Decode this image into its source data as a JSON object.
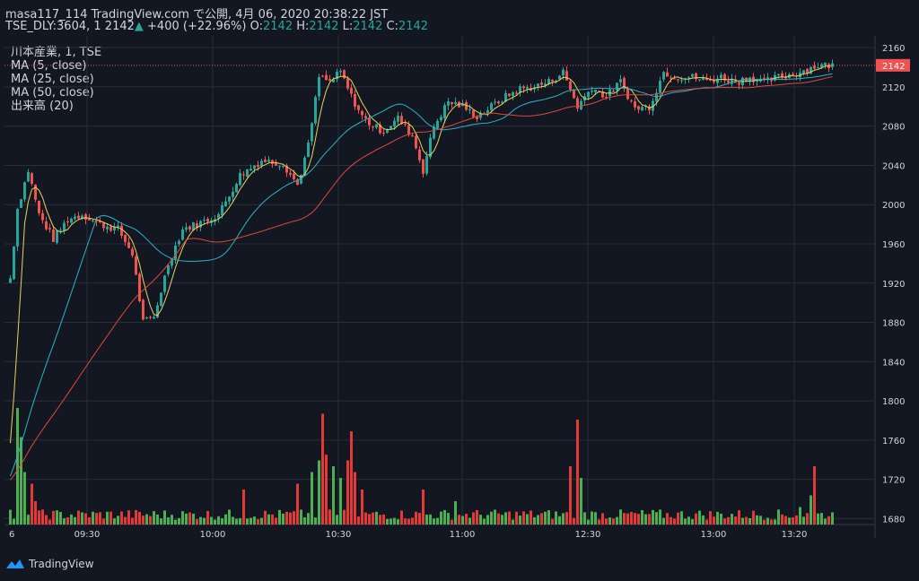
{
  "header": {
    "line1": "masa117_114 TradingView.com で公開, 4月 06, 2020 20:38:22 JST",
    "symbol": "TSE_DLY:3604, 1",
    "last": "2142",
    "change": "+400 (+22.96%)",
    "o_label": "O:",
    "o": "2142",
    "h_label": "H:",
    "h": "2142",
    "l_label": "L:",
    "l": "2142",
    "c_label": "C:",
    "c": "2142"
  },
  "studies": [
    "川本産業, 1, TSE",
    "MA (5, close)",
    "MA (25, close)",
    "MA (50, close)",
    "出来高 (20)"
  ],
  "logo_text": "TradingView",
  "colors": {
    "background": "#131722",
    "up": "#26a69a",
    "down": "#ef5350",
    "vol_up": "#4caf50",
    "vol_down": "#e53935",
    "ma5": "#e8d25a",
    "ma25": "#2ab5c9",
    "ma50": "#e0483a",
    "grid": "#2a2e39",
    "price_tag": "#ef5350"
  },
  "chart_data": {
    "type": "candlestick",
    "title": "",
    "y_ticks": [
      2160,
      2120,
      2080,
      2040,
      2000,
      1960,
      1920,
      1880,
      1840,
      1800,
      1760,
      1720,
      1680
    ],
    "ylim": [
      1674,
      2172
    ],
    "x_ticks": [
      "6",
      "09:30",
      "10:00",
      "10:30",
      "11:00",
      "12:30",
      "13:00",
      "13:20"
    ],
    "last_price_label": "2142",
    "price_points": [
      {
        "t": 0,
        "p": 1925
      },
      {
        "t": 2,
        "p": 1996
      },
      {
        "t": 5,
        "p": 2035
      },
      {
        "t": 8,
        "p": 1990
      },
      {
        "t": 12,
        "p": 1965
      },
      {
        "t": 16,
        "p": 1985
      },
      {
        "t": 20,
        "p": 1990
      },
      {
        "t": 25,
        "p": 1980
      },
      {
        "t": 30,
        "p": 1975
      },
      {
        "t": 34,
        "p": 1950
      },
      {
        "t": 37,
        "p": 1880
      },
      {
        "t": 40,
        "p": 1885
      },
      {
        "t": 44,
        "p": 1940
      },
      {
        "t": 48,
        "p": 1975
      },
      {
        "t": 52,
        "p": 1980
      },
      {
        "t": 58,
        "p": 1990
      },
      {
        "t": 64,
        "p": 2030
      },
      {
        "t": 70,
        "p": 2045
      },
      {
        "t": 76,
        "p": 2042
      },
      {
        "t": 80,
        "p": 2020
      },
      {
        "t": 83,
        "p": 2060
      },
      {
        "t": 86,
        "p": 2130
      },
      {
        "t": 89,
        "p": 2125
      },
      {
        "t": 92,
        "p": 2135
      },
      {
        "t": 95,
        "p": 2110
      },
      {
        "t": 98,
        "p": 2090
      },
      {
        "t": 101,
        "p": 2080
      },
      {
        "t": 104,
        "p": 2075
      },
      {
        "t": 108,
        "p": 2088
      },
      {
        "t": 112,
        "p": 2070
      },
      {
        "t": 115,
        "p": 2035
      },
      {
        "t": 118,
        "p": 2080
      },
      {
        "t": 122,
        "p": 2105
      },
      {
        "t": 126,
        "p": 2100
      },
      {
        "t": 130,
        "p": 2090
      },
      {
        "t": 134,
        "p": 2100
      },
      {
        "t": 138,
        "p": 2110
      },
      {
        "t": 142,
        "p": 2118
      },
      {
        "t": 146,
        "p": 2120
      },
      {
        "t": 150,
        "p": 2125
      },
      {
        "t": 154,
        "p": 2135
      },
      {
        "t": 158,
        "p": 2100
      },
      {
        "t": 162,
        "p": 2120
      },
      {
        "t": 166,
        "p": 2110
      },
      {
        "t": 170,
        "p": 2125
      },
      {
        "t": 174,
        "p": 2098
      },
      {
        "t": 178,
        "p": 2100
      },
      {
        "t": 182,
        "p": 2135
      },
      {
        "t": 186,
        "p": 2130
      },
      {
        "t": 190,
        "p": 2130
      },
      {
        "t": 194,
        "p": 2126
      },
      {
        "t": 198,
        "p": 2130
      },
      {
        "t": 202,
        "p": 2125
      },
      {
        "t": 206,
        "p": 2130
      },
      {
        "t": 210,
        "p": 2125
      },
      {
        "t": 214,
        "p": 2130
      },
      {
        "t": 218,
        "p": 2133
      },
      {
        "t": 222,
        "p": 2138
      },
      {
        "t": 225,
        "p": 2142
      }
    ],
    "volume_spikes": [
      {
        "t": 2,
        "v": 1.0
      },
      {
        "t": 3,
        "v": 0.75
      },
      {
        "t": 4,
        "v": 0.45
      },
      {
        "t": 6,
        "v": 0.35
      },
      {
        "t": 7,
        "v": 0.2
      },
      {
        "t": 65,
        "v": 0.3
      },
      {
        "t": 80,
        "v": 0.35
      },
      {
        "t": 84,
        "v": 0.45
      },
      {
        "t": 86,
        "v": 0.55
      },
      {
        "t": 87,
        "v": 0.95
      },
      {
        "t": 88,
        "v": 0.6
      },
      {
        "t": 90,
        "v": 0.5
      },
      {
        "t": 92,
        "v": 0.4
      },
      {
        "t": 94,
        "v": 0.55
      },
      {
        "t": 95,
        "v": 0.8
      },
      {
        "t": 96,
        "v": 0.45
      },
      {
        "t": 98,
        "v": 0.3
      },
      {
        "t": 115,
        "v": 0.3
      },
      {
        "t": 124,
        "v": 0.2
      },
      {
        "t": 156,
        "v": 0.5
      },
      {
        "t": 158,
        "v": 0.9
      },
      {
        "t": 159,
        "v": 0.4
      },
      {
        "t": 220,
        "v": 0.15
      },
      {
        "t": 223,
        "v": 0.25
      },
      {
        "t": 224,
        "v": 0.5
      }
    ]
  }
}
